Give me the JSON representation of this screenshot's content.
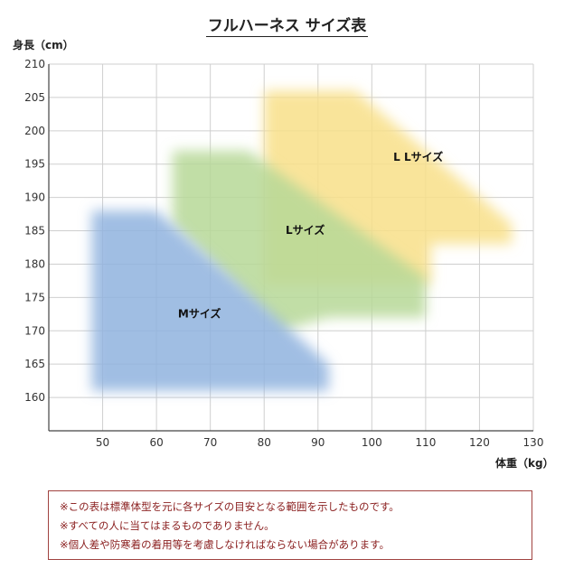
{
  "chart_data": {
    "type": "area",
    "title": "フルハーネス サイズ表",
    "xlabel": "体重（kg）",
    "ylabel": "身長（cm）",
    "xlim": [
      40,
      130
    ],
    "ylim": [
      155,
      210
    ],
    "x_ticks": [
      50,
      60,
      70,
      80,
      90,
      100,
      110,
      120,
      130
    ],
    "y_ticks": [
      160,
      165,
      170,
      175,
      180,
      185,
      190,
      195,
      200,
      205,
      210
    ],
    "grid": true,
    "regions": [
      {
        "name": "Mサイズ",
        "color": "#8fb3de",
        "label_pos": [
          64,
          172
        ],
        "polygon": [
          [
            48,
            188
          ],
          [
            60,
            188
          ],
          [
            92,
            165
          ],
          [
            92,
            161
          ],
          [
            48,
            161
          ]
        ]
      },
      {
        "name": "Lサイズ",
        "color": "#b6d897",
        "label_pos": [
          84,
          184.5
        ],
        "polygon": [
          [
            63,
            197
          ],
          [
            77,
            197
          ],
          [
            110,
            178
          ],
          [
            110,
            172
          ],
          [
            92,
            172
          ],
          [
            83,
            170
          ],
          [
            63,
            186
          ]
        ]
      },
      {
        "name": "L Lサイズ",
        "color": "#f8df88",
        "label_pos": [
          104,
          195.5
        ],
        "polygon": [
          [
            80,
            206
          ],
          [
            97,
            206
          ],
          [
            126,
            186
          ],
          [
            126,
            183
          ],
          [
            111,
            183
          ],
          [
            111,
            177
          ],
          [
            80,
            177
          ]
        ]
      }
    ]
  },
  "notes": [
    "※この表は標準体型を元に各サイズの目安となる範囲を示したものです。",
    "※すべての人に当てはまるものでありません。",
    "※個人差や防寒着の着用等を考慮しなければならない場合があります。"
  ]
}
